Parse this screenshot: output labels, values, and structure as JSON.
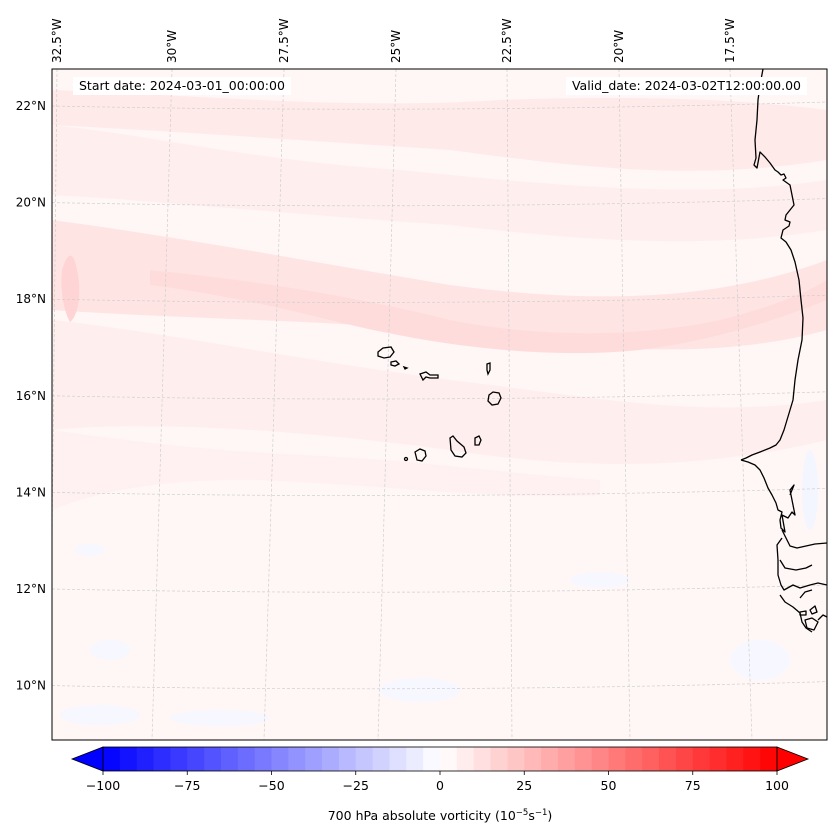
{
  "map": {
    "projection": "regional map with lat/lon gridlines",
    "start_date_label": "Start date: 2024-03-01_00:00:00",
    "valid_date_label": "Valid_date: 2024-03-02T12:00:00.00",
    "lon_ticks": [
      "32.5°W",
      "30°W",
      "27.5°W",
      "25°W",
      "22.5°W",
      "20°W",
      "17.5°W"
    ],
    "lon_values": [
      -32.5,
      -30,
      -27.5,
      -25,
      -22.5,
      -20,
      -17.5
    ],
    "lat_ticks": [
      "22°N",
      "20°N",
      "18°N",
      "16°N",
      "14°N",
      "12°N",
      "10°N"
    ],
    "lat_values": [
      22,
      20,
      18,
      16,
      14,
      12,
      10
    ],
    "extent": {
      "lon_min": -32.6,
      "lon_max": -15.5,
      "lat_min": 8.9,
      "lat_max": 22.8
    },
    "features": [
      "Cape Verde islands",
      "West African coastline (Mauritania, Senegal, Gambia, Guinea-Bissau)"
    ],
    "field": "700 hPa absolute vorticity",
    "field_range_observed": "approximately -5 to 20 (weak positive band along ~18°N)"
  },
  "colorbar": {
    "label_main": "700 hPa absolute vorticity (10",
    "label_exp1": "−5",
    "label_mid": "s",
    "label_exp2": "−1",
    "label_end": ")",
    "ticks": [
      "−100",
      "−75",
      "−50",
      "−25",
      "0",
      "25",
      "50",
      "75",
      "100"
    ],
    "tick_values": [
      -100,
      -75,
      -50,
      -25,
      0,
      25,
      50,
      75,
      100
    ],
    "vmin": -100,
    "vmax": 100,
    "levels": 40,
    "colormap": "bwr",
    "extend": "both",
    "color_low": "#0000ff",
    "color_mid": "#ffffff",
    "color_high": "#ff0000"
  },
  "colors": {
    "background_field": "#fff5f5",
    "weak_positive": "#ffe6e6",
    "moderate_positive": "#ffd9d9",
    "weak_negative": "#f4f6ff",
    "coastline": "#000000",
    "gridline": "#c8c8c8"
  }
}
